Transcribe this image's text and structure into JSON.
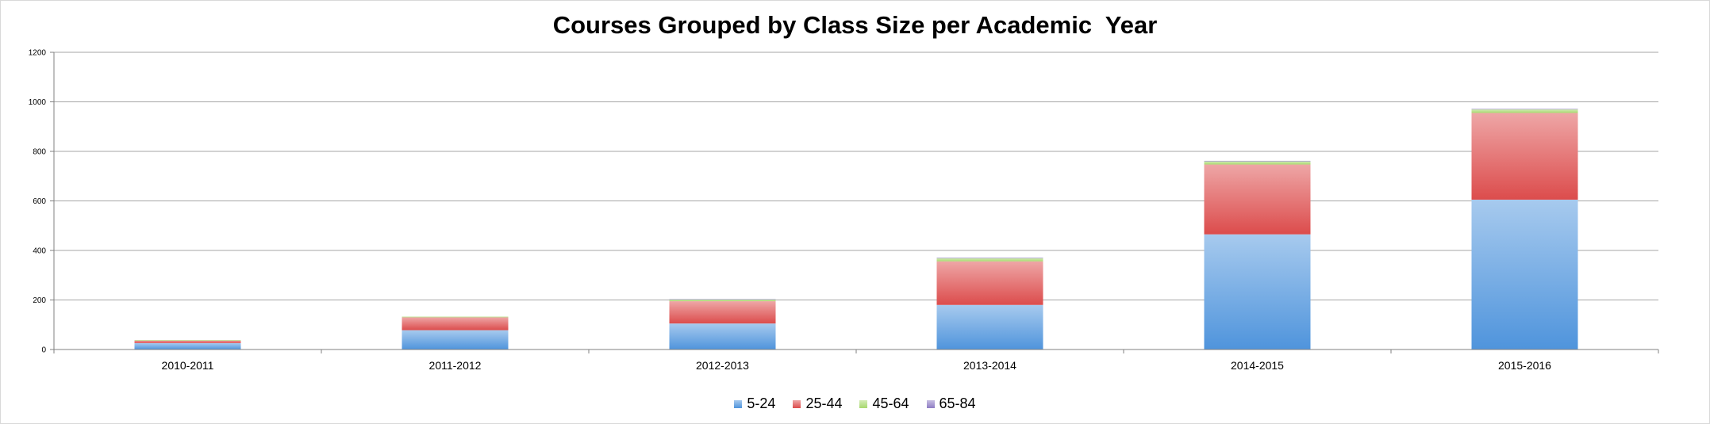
{
  "chart_data": {
    "type": "bar",
    "stacked": true,
    "title": "Courses Grouped by Class Size per Academic  Year",
    "xlabel": "",
    "ylabel": "",
    "categories": [
      "2010-2011",
      "2011-2012",
      "2012-2013",
      "2013-2014",
      "2014-2015",
      "2015-2016"
    ],
    "ylim": [
      0,
      1200
    ],
    "yticks": [
      0,
      200,
      400,
      600,
      800,
      1000,
      1200
    ],
    "grid": true,
    "legend_position": "bottom",
    "series": [
      {
        "name": "5-24",
        "color": "#4f94dc",
        "values": [
          26,
          78,
          105,
          180,
          465,
          605
        ]
      },
      {
        "name": "25-44",
        "color": "#dc4c4c",
        "values": [
          11,
          52,
          90,
          176,
          282,
          350
        ]
      },
      {
        "name": "45-64",
        "color": "#a8d86e",
        "values": [
          1,
          3,
          8,
          13,
          13,
          15
        ]
      },
      {
        "name": "65-84",
        "color": "#8e7cc3",
        "values": [
          0,
          0,
          1,
          2,
          2,
          2
        ]
      }
    ]
  }
}
